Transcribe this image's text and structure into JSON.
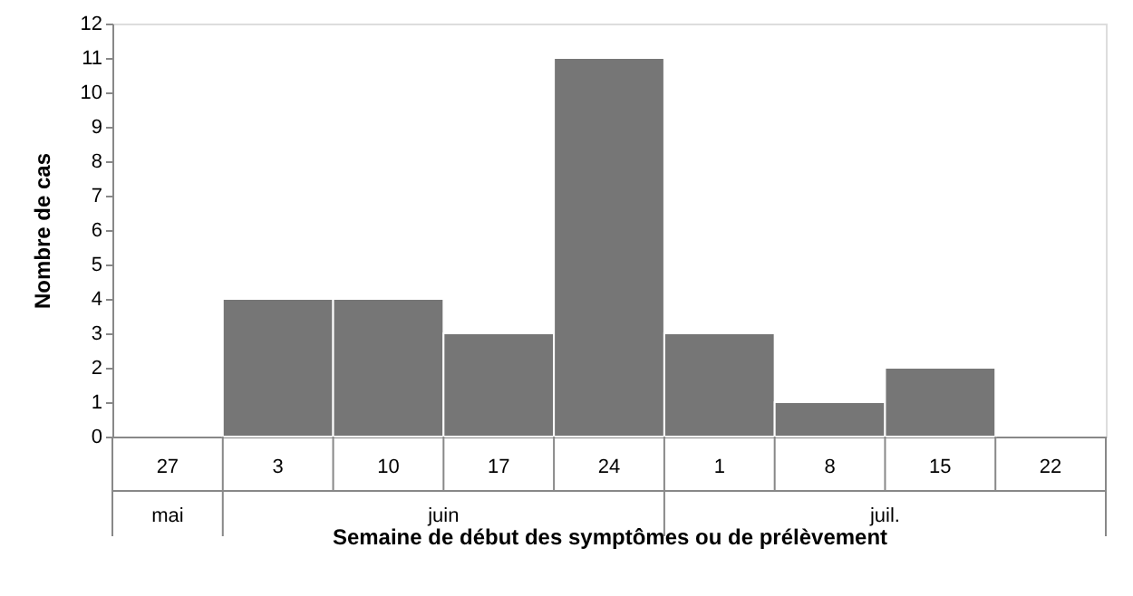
{
  "chart_data": {
    "type": "bar",
    "categories": [
      "27",
      "3",
      "10",
      "17",
      "24",
      "1",
      "8",
      "15",
      "22"
    ],
    "values": [
      0,
      4,
      4,
      3,
      11,
      3,
      1,
      2,
      0
    ],
    "color": "#767676",
    "ylim": [
      0,
      12
    ],
    "yticks": [
      0,
      1,
      2,
      3,
      4,
      5,
      6,
      7,
      8,
      9,
      10,
      11,
      12
    ],
    "ylabel": "Nombre de cas",
    "xlabel": "Semaine de début des symptômes ou de prélèvement",
    "annotations": [
      "mai",
      "juin",
      "juil."
    ],
    "grid": false
  }
}
